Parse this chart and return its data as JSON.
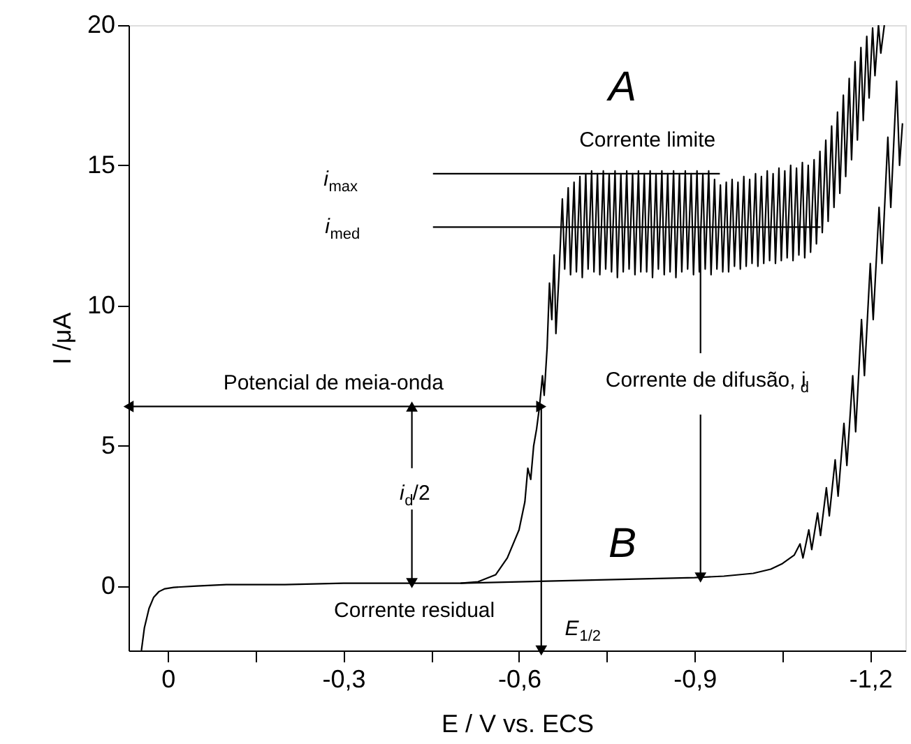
{
  "chart_data": {
    "type": "line",
    "xlabel": "E / V vs. ECS",
    "ylabel": "I /μA",
    "xlim": [
      0.067,
      -1.26
    ],
    "ylim": [
      -2.3,
      20
    ],
    "xticks": [
      0,
      {
        "value": -0.15,
        "label": null
      },
      {
        "value": -0.3,
        "label": "-0,3"
      },
      {
        "value": -0.45,
        "label": null
      },
      {
        "value": -0.6,
        "label": "-0,6"
      },
      {
        "value": -0.75,
        "label": null
      },
      {
        "value": -0.9,
        "label": "-0,9"
      },
      {
        "value": -1.05,
        "label": null
      },
      {
        "value": -1.2,
        "label": "-1,2"
      }
    ],
    "yticks": [
      0,
      5,
      10,
      15,
      20
    ],
    "grid": false,
    "line_style": "solid",
    "series": [
      {
        "color": "#000000",
        "marker": "none",
        "x": [
          0.045,
          0.04,
          0.032,
          0.024,
          0.015,
          0.005,
          -0.01,
          -0.05,
          -0.1,
          -0.2,
          -0.3,
          -0.4,
          -0.5,
          -0.53,
          -0.56,
          -0.58,
          -0.6,
          -0.61,
          -0.615,
          -0.62,
          -0.625,
          -0.63,
          -0.635,
          -0.64,
          -0.643,
          -0.648,
          -0.652,
          -0.656,
          -0.66,
          -0.663,
          -0.668,
          -0.674,
          -0.678,
          -0.684,
          -0.688,
          -0.694,
          -0.698,
          -0.704,
          -0.708,
          -0.714,
          -0.718,
          -0.724,
          -0.728,
          -0.734,
          -0.738,
          -0.744,
          -0.748,
          -0.754,
          -0.758,
          -0.764,
          -0.768,
          -0.774,
          -0.778,
          -0.784,
          -0.788,
          -0.794,
          -0.798,
          -0.804,
          -0.808,
          -0.814,
          -0.818,
          -0.824,
          -0.828,
          -0.834,
          -0.838,
          -0.844,
          -0.848,
          -0.854,
          -0.858,
          -0.864,
          -0.868,
          -0.874,
          -0.878,
          -0.884,
          -0.888,
          -0.894,
          -0.898,
          -0.904,
          -0.908,
          -0.914,
          -0.918,
          -0.924,
          -0.928,
          -0.934,
          -0.938,
          -0.944,
          -0.948,
          -0.954,
          -0.958,
          -0.964,
          -0.968,
          -0.974,
          -0.978,
          -0.984,
          -0.988,
          -0.994,
          -0.998,
          -1.004,
          -1.008,
          -1.014,
          -1.018,
          -1.024,
          -1.028,
          -1.034,
          -1.038,
          -1.044,
          -1.048,
          -1.054,
          -1.058,
          -1.064,
          -1.068,
          -1.074,
          -1.078,
          -1.084,
          -1.088,
          -1.094,
          -1.098,
          -1.104,
          -1.108,
          -1.114,
          -1.118,
          -1.124,
          -1.128,
          -1.134,
          -1.138,
          -1.144,
          -1.148,
          -1.154,
          -1.158,
          -1.164,
          -1.168,
          -1.174,
          -1.178,
          -1.184,
          -1.188,
          -1.194,
          -1.198,
          -1.204,
          -1.208,
          -1.214,
          -1.218,
          -1.224
        ],
        "values": [
          -2.3,
          -1.5,
          -0.8,
          -0.4,
          -0.2,
          -0.1,
          -0.05,
          0.0,
          0.05,
          0.05,
          0.1,
          0.1,
          0.1,
          0.15,
          0.4,
          1.0,
          2.0,
          3.0,
          4.2,
          3.8,
          5.0,
          5.6,
          6.4,
          7.5,
          6.8,
          8.5,
          10.8,
          9.5,
          11.8,
          9.0,
          11.0,
          13.8,
          11.3,
          14.2,
          11.1,
          14.4,
          11.2,
          14.6,
          11.0,
          14.7,
          11.3,
          14.8,
          11.2,
          14.7,
          11.1,
          14.8,
          11.3,
          14.7,
          11.2,
          14.8,
          11.0,
          14.7,
          11.2,
          14.8,
          11.3,
          14.7,
          11.1,
          14.8,
          11.2,
          14.7,
          11.2,
          14.8,
          11.0,
          14.7,
          11.3,
          14.8,
          11.1,
          14.7,
          11.2,
          14.8,
          11.0,
          14.7,
          11.2,
          14.8,
          11.3,
          14.7,
          11.1,
          14.8,
          11.2,
          14.7,
          11.3,
          14.8,
          11.1,
          14.5,
          11.3,
          14.3,
          11.2,
          14.4,
          11.2,
          14.5,
          11.4,
          14.4,
          11.3,
          14.6,
          11.4,
          14.5,
          11.5,
          14.7,
          11.4,
          14.6,
          11.5,
          14.8,
          11.6,
          14.7,
          11.5,
          14.9,
          11.6,
          14.8,
          11.7,
          15.0,
          11.6,
          14.9,
          11.8,
          15.1,
          11.7,
          15.0,
          11.9,
          15.2,
          12.2,
          15.5,
          12.6,
          15.9,
          13.0,
          16.4,
          13.5,
          16.9,
          14.0,
          17.5,
          14.6,
          18.1,
          15.2,
          18.7,
          15.9,
          19.2,
          16.6,
          19.6,
          17.4,
          19.9,
          18.2,
          20.0,
          19.0,
          20.0
        ]
      },
      {
        "color": "#000000",
        "marker": "none",
        "x": [
          -0.5,
          -0.6,
          -0.7,
          -0.8,
          -0.9,
          -0.95,
          -1.0,
          -1.03,
          -1.05,
          -1.07,
          -1.08,
          -1.085,
          -1.095,
          -1.1,
          -1.11,
          -1.115,
          -1.125,
          -1.13,
          -1.14,
          -1.145,
          -1.155,
          -1.16,
          -1.17,
          -1.175,
          -1.185,
          -1.19,
          -1.2,
          -1.205,
          -1.215,
          -1.22,
          -1.23,
          -1.235,
          -1.245,
          -1.25,
          -1.255
        ],
        "values": [
          0.1,
          0.15,
          0.2,
          0.25,
          0.3,
          0.35,
          0.45,
          0.6,
          0.8,
          1.1,
          1.5,
          1.0,
          2.0,
          1.3,
          2.6,
          1.8,
          3.5,
          2.5,
          4.5,
          3.2,
          5.8,
          4.3,
          7.5,
          5.5,
          9.5,
          7.5,
          11.5,
          9.5,
          13.5,
          11.5,
          16.0,
          13.5,
          18.0,
          15.0,
          16.5
        ]
      },
      {
        "color": "#000000",
        "marker": "triangle",
        "x": [
          -0.417,
          -0.417
        ],
        "values": [
          4.2,
          6.4
        ]
      },
      {
        "color": "#000000",
        "marker": "none",
        "x": [
          -0.453,
          -0.943
        ],
        "values": [
          14.7,
          14.7
        ]
      },
      {
        "color": "#000000",
        "marker": "none",
        "x": [
          -0.453,
          -1.115
        ],
        "values": [
          12.8,
          12.8
        ]
      },
      {
        "color": "#000000",
        "marker": "none",
        "x": [
          -0.91,
          -0.91
        ],
        "values": [
          12.8,
          8.3
        ]
      },
      {
        "color": "#000000",
        "marker": "triangle",
        "x": [
          0.067,
          -0.638
        ],
        "values": [
          6.4,
          6.4
        ]
      }
    ],
    "annotations": [
      "A",
      "B",
      "Corrente limite",
      "i$_{max}$",
      "i$_{med}$",
      "Potencial de meia-onda",
      {
        "text": "i$_{d}$/2",
        "x": -0.417,
        "y": 0.1
      },
      {
        "text": "Corrente de difusão, i$_{d}$",
        "x": -0.91,
        "y": 0.3
      },
      "Corrente residual",
      {
        "text": "E$_{1/2}$",
        "x": -0.638,
        "y": -2.3
      }
    ]
  }
}
